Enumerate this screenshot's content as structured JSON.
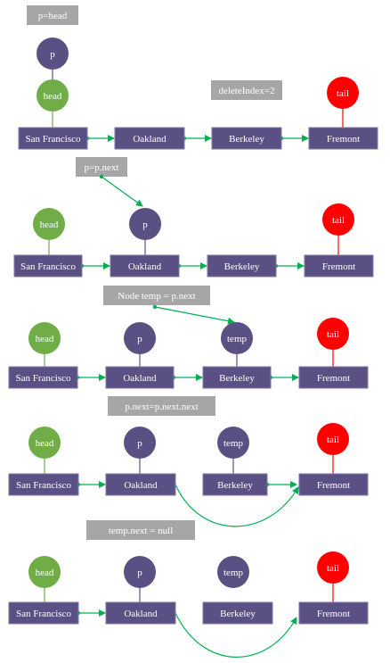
{
  "colors": {
    "box": "#5b5084",
    "box_border": "#7f76a6",
    "label_box": "#a6a6a6",
    "head": "#70ad47",
    "p": "#5b5084",
    "tail": "#ff0000",
    "arrow": "#00b050"
  },
  "cities": [
    "San Francisco",
    "Oakland",
    "Berkeley",
    "Fremont"
  ],
  "pointers": {
    "p": "p",
    "head": "head",
    "tail": "tail",
    "temp": "temp"
  },
  "labels": {
    "s1_code": "p=head",
    "s1_index": "deleteIndex=2",
    "s2_code": "p=p.next",
    "s3_code": "Node temp = p.next",
    "s4_code": "p.next=p.next.next",
    "s5_code": "temp.next = null"
  }
}
